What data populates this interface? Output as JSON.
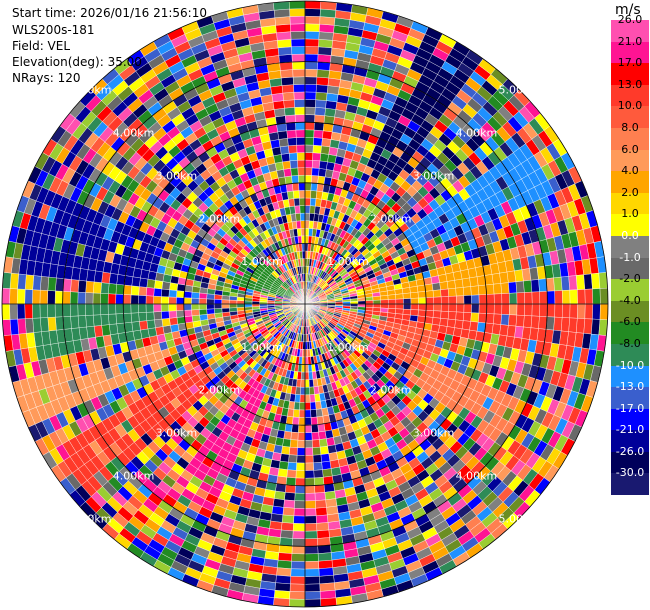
{
  "info": {
    "start_time": "Start time: 2026/01/16 21:56:10",
    "device": "WLS200s-181",
    "field": "Field: VEL",
    "elevation": "Elevation(deg): 35.00",
    "nrays": "NRays: 120"
  },
  "chart_data": {
    "type": "heatmap",
    "projection": "polar-ppi",
    "field": "VEL",
    "elevation_deg": 35.0,
    "nrays": 120,
    "range_max_km": 5.0,
    "range_rings_km": [
      1,
      2,
      3,
      4,
      5
    ],
    "ring_labels": [
      "1.00km",
      "2.00km",
      "3.00km",
      "4.00km",
      "5.00km"
    ],
    "ring_label_angles_deg": [
      45,
      135,
      225,
      315
    ],
    "gates": 40,
    "colorbar": {
      "unit": "m/s",
      "ticks": [
        26.0,
        21.0,
        17.0,
        13.0,
        10.0,
        8.0,
        6.0,
        4.0,
        2.0,
        1.0,
        0.0,
        -1.0,
        -2.0,
        -4.0,
        -6.0,
        -8.0,
        -10.0,
        -13.0,
        -17.0,
        -21.0,
        -26.0,
        -30.0
      ],
      "tick_labels": [
        "26.0",
        "21.0",
        "17.0",
        "13.0",
        "10.0",
        "8.0",
        "6.0",
        "4.0",
        "2.0",
        "1.0",
        "0.0",
        "-1.0",
        "-2.0",
        "-4.0",
        "-6.0",
        "-8.0",
        "-10.0",
        "-13.0",
        "-17.0",
        "-21.0",
        "-26.0",
        "-30.0"
      ],
      "colors": [
        "#ff4fb0",
        "#ff1493",
        "#ff0000",
        "#ff3a2a",
        "#ff5a3c",
        "#ff7f50",
        "#ff9a5a",
        "#ffa500",
        "#ffd700",
        "#ffff00",
        "#808080",
        "#696969",
        "#9acd32",
        "#6b8e23",
        "#228b22",
        "#2e8b57",
        "#1e90ff",
        "#3a5fcd",
        "#0000ff",
        "#000099",
        "#00005a",
        "#191970"
      ]
    },
    "features": [
      {
        "azimuth_deg": 30,
        "width_deg": 14,
        "range_km": [
          2.5,
          5.0
        ],
        "value": -26.0
      },
      {
        "azimuth_deg": 60,
        "width_deg": 10,
        "range_km": [
          2.0,
          4.5
        ],
        "value": -10.0
      },
      {
        "azimuth_deg": 80,
        "width_deg": 12,
        "range_km": [
          1.0,
          3.5
        ],
        "value": 4.0
      },
      {
        "azimuth_deg": 95,
        "width_deg": 14,
        "range_km": [
          1.0,
          4.8
        ],
        "value": 13.0
      },
      {
        "azimuth_deg": 110,
        "width_deg": 20,
        "range_km": [
          0.3,
          2.2
        ],
        "value": 10.0
      },
      {
        "azimuth_deg": 120,
        "width_deg": 14,
        "range_km": [
          2.0,
          4.0
        ],
        "value": 8.0
      },
      {
        "azimuth_deg": 210,
        "width_deg": 14,
        "range_km": [
          1.5,
          3.8
        ],
        "value": 21.0
      },
      {
        "azimuth_deg": 235,
        "width_deg": 12,
        "range_km": [
          2.0,
          4.8
        ],
        "value": 13.0
      },
      {
        "azimuth_deg": 250,
        "width_deg": 10,
        "range_km": [
          2.5,
          5.0
        ],
        "value": 6.0
      },
      {
        "azimuth_deg": 265,
        "width_deg": 12,
        "range_km": [
          2.5,
          4.5
        ],
        "value": -8.0
      },
      {
        "azimuth_deg": 285,
        "width_deg": 16,
        "range_km": [
          2.5,
          4.8
        ],
        "value": -21.0
      },
      {
        "azimuth_deg": 300,
        "width_deg": 30,
        "range_km": [
          0.2,
          1.3
        ],
        "value": -6.0
      }
    ]
  }
}
